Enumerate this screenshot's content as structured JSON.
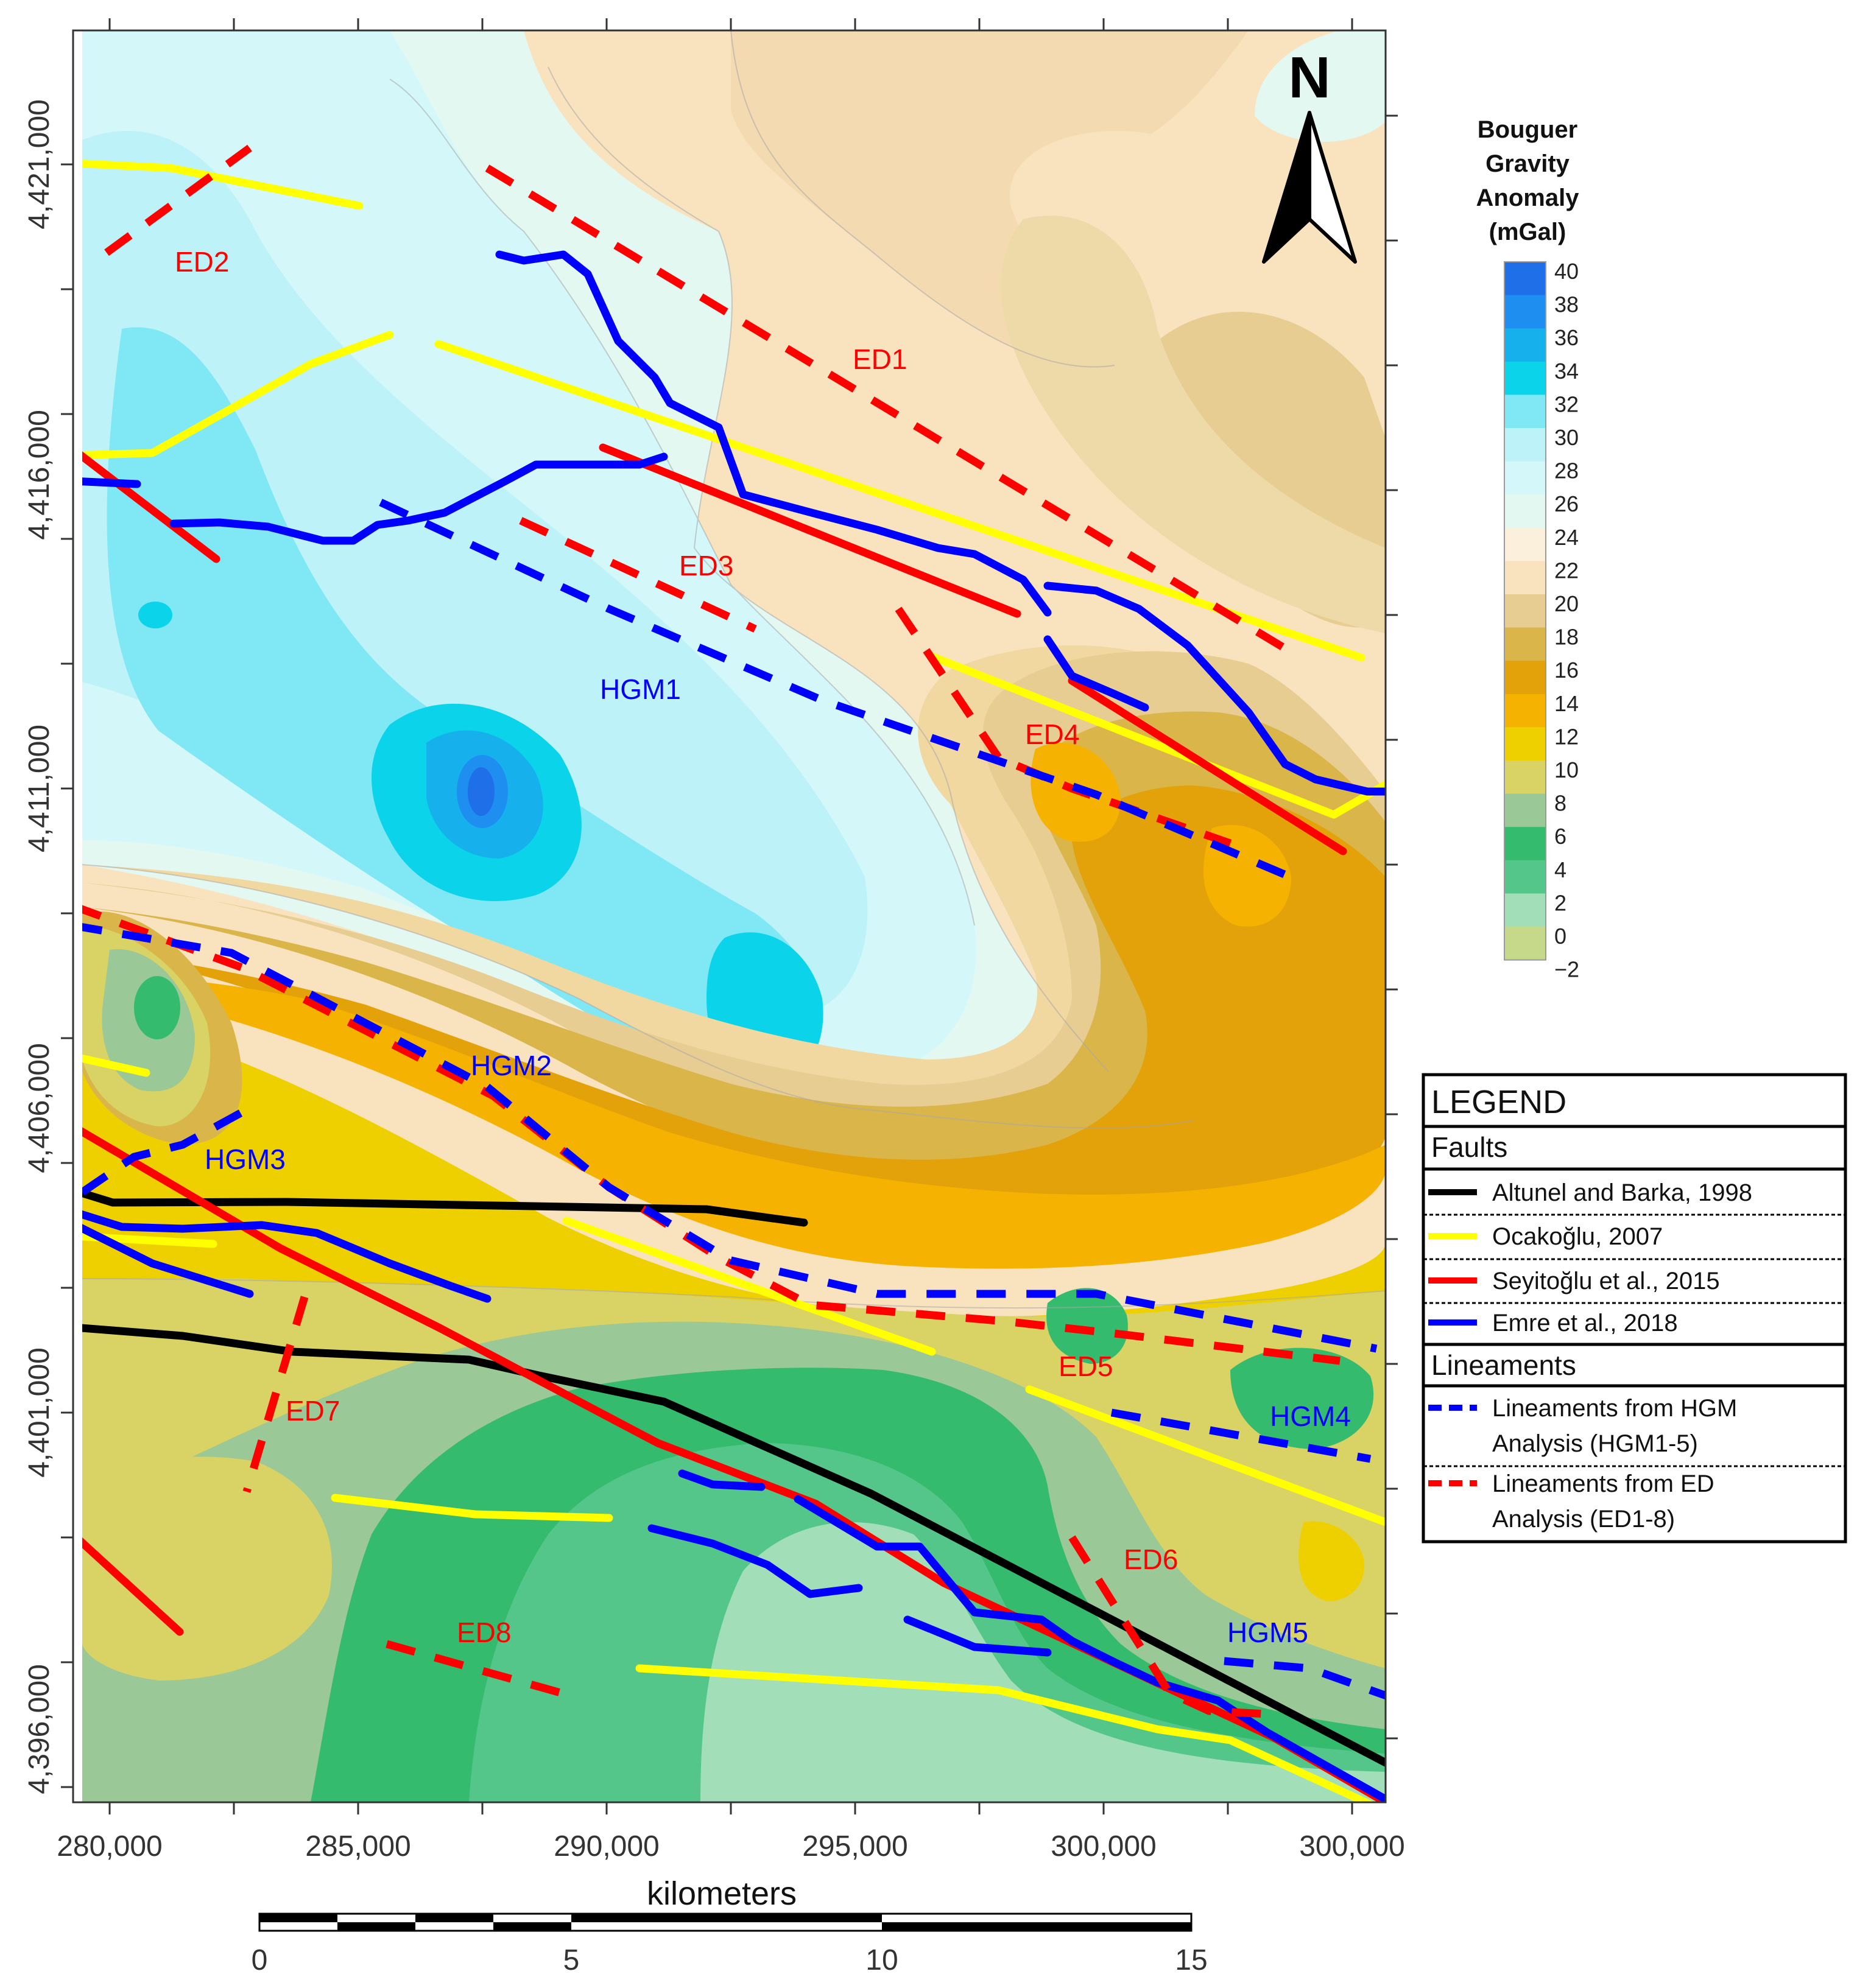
{
  "map": {
    "x_axis": {
      "title": "kilometers",
      "ticks": [
        "280,000",
        "285,000",
        "290,000",
        "295,000",
        "300,000"
      ]
    },
    "y_axis": {
      "ticks": [
        "4,421,000",
        "4,416,000",
        "4,411,000",
        "4,406,000",
        "4,401,000",
        "4,396,000"
      ]
    },
    "north_label": "N",
    "scalebar": {
      "labels": [
        "0",
        "5",
        "10",
        "15"
      ]
    },
    "colorbar": {
      "title_lines": [
        "Bouguer",
        "Gravity",
        "Anomaly",
        "(mGal)"
      ],
      "stops": [
        {
          "label": "40",
          "color": "#1f6fe8"
        },
        {
          "label": "38",
          "color": "#1e8ef0"
        },
        {
          "label": "36",
          "color": "#16b0ec"
        },
        {
          "label": "34",
          "color": "#0bd3ea"
        },
        {
          "label": "32",
          "color": "#7fe8f4"
        },
        {
          "label": "30",
          "color": "#bdf2f8"
        },
        {
          "label": "28",
          "color": "#d4f8fa"
        },
        {
          "label": "26",
          "color": "#e3f8f1"
        },
        {
          "label": "24",
          "color": "#fbf0dc"
        },
        {
          "label": "22",
          "color": "#f9e3bf"
        },
        {
          "label": "20",
          "color": "#e8cd92"
        },
        {
          "label": "18",
          "color": "#d9b54a"
        },
        {
          "label": "16",
          "color": "#e3a10a"
        },
        {
          "label": "14",
          "color": "#f6b200"
        },
        {
          "label": "12",
          "color": "#eed000"
        },
        {
          "label": "10",
          "color": "#d9d265"
        },
        {
          "label": "8",
          "color": "#9ac896"
        },
        {
          "label": "6",
          "color": "#35bb6d"
        },
        {
          "label": "4",
          "color": "#55c68a"
        },
        {
          "label": "2",
          "color": "#a2dfb8"
        },
        {
          "label": "0",
          "color": "#c6d88a"
        },
        {
          "label": "−2",
          "color": "#c6d88a"
        }
      ]
    },
    "lineament_labels": {
      "ed": [
        "ED1",
        "ED2",
        "ED3",
        "ED4",
        "ED5",
        "ED6",
        "ED7",
        "ED8"
      ],
      "hgm": [
        "HGM1",
        "HGM2",
        "HGM3",
        "HGM4",
        "HGM5"
      ]
    },
    "legend": {
      "title": "LEGEND",
      "faults_header": "Faults",
      "faults": [
        {
          "label": "Altunel and Barka, 1998",
          "color": "#000000"
        },
        {
          "label": "Ocakoğlu, 2007",
          "color": "#ffff00"
        },
        {
          "label": "Seyitoğlu et al., 2015",
          "color": "#ff0000"
        },
        {
          "label": "Emre et al., 2018",
          "color": "#0000ff"
        }
      ],
      "lineaments_header": "Lineaments",
      "lineaments": [
        {
          "line1": "Lineaments from HGM",
          "line2": "Analysis (HGM1-5)",
          "color": "#0000ff"
        },
        {
          "line1": "Lineaments from ED",
          "line2": "Analysis (ED1-8)",
          "color": "#ff0000"
        }
      ]
    }
  }
}
